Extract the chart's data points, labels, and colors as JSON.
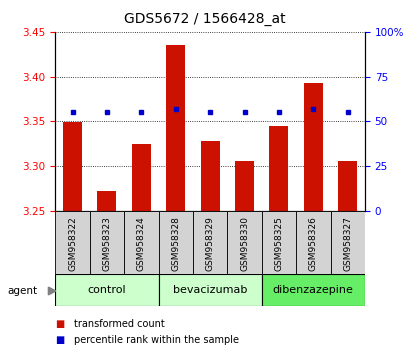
{
  "title": "GDS5672 / 1566428_at",
  "samples": [
    "GSM958322",
    "GSM958323",
    "GSM958324",
    "GSM958328",
    "GSM958329",
    "GSM958330",
    "GSM958325",
    "GSM958326",
    "GSM958327"
  ],
  "red_values": [
    3.349,
    3.272,
    3.325,
    3.435,
    3.328,
    3.305,
    3.345,
    3.393,
    3.305
  ],
  "blue_values": [
    55,
    55,
    55,
    57,
    55,
    55,
    55,
    57,
    55
  ],
  "ylim_left": [
    3.25,
    3.45
  ],
  "ylim_right": [
    0,
    100
  ],
  "yticks_left": [
    3.25,
    3.3,
    3.35,
    3.4,
    3.45
  ],
  "yticks_right": [
    0,
    25,
    50,
    75,
    100
  ],
  "ytick_labels_right": [
    "0",
    "25",
    "50",
    "75",
    "100%"
  ],
  "groups": [
    {
      "label": "control",
      "indices": [
        0,
        1,
        2
      ],
      "color": "#ccffcc"
    },
    {
      "label": "bevacizumab",
      "indices": [
        3,
        4,
        5
      ],
      "color": "#ccffcc"
    },
    {
      "label": "dibenzazepine",
      "indices": [
        6,
        7,
        8
      ],
      "color": "#66ee66"
    }
  ],
  "bar_color": "#cc1100",
  "blue_color": "#0000cc",
  "bar_width": 0.55,
  "agent_label": "agent",
  "legend_red": "transformed count",
  "legend_blue": "percentile rank within the sample",
  "title_fontsize": 10,
  "tick_fontsize": 7.5,
  "sample_fontsize": 6.5,
  "group_fontsize": 8,
  "legend_fontsize": 7
}
